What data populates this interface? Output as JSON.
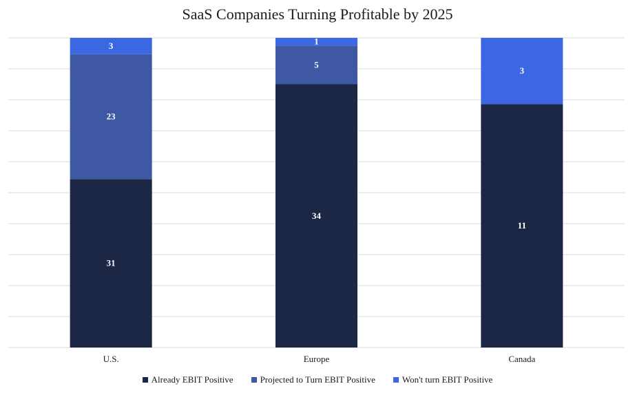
{
  "chart_data": {
    "type": "bar",
    "stacked": true,
    "title": "SaaS Companies Turning Profitable by 2025",
    "categories": [
      "U.S.",
      "Europe",
      "Canada"
    ],
    "series": [
      {
        "name": "Already EBIT Positive",
        "values": [
          31,
          34,
          11
        ],
        "color": "#1c2645"
      },
      {
        "name": "Projected to Turn EBIT Positive",
        "values": [
          23,
          5,
          0
        ],
        "color": "#3e58a4"
      },
      {
        "name": "Won't turn EBIT Positive",
        "values": [
          3,
          1,
          3
        ],
        "color": "#3c67e3"
      }
    ],
    "normalized": true,
    "ylim": [
      0,
      1
    ],
    "grid": true,
    "legend_position": "bottom",
    "data_label_color": "#ffffff",
    "grid_color": "#d9d9d9"
  }
}
